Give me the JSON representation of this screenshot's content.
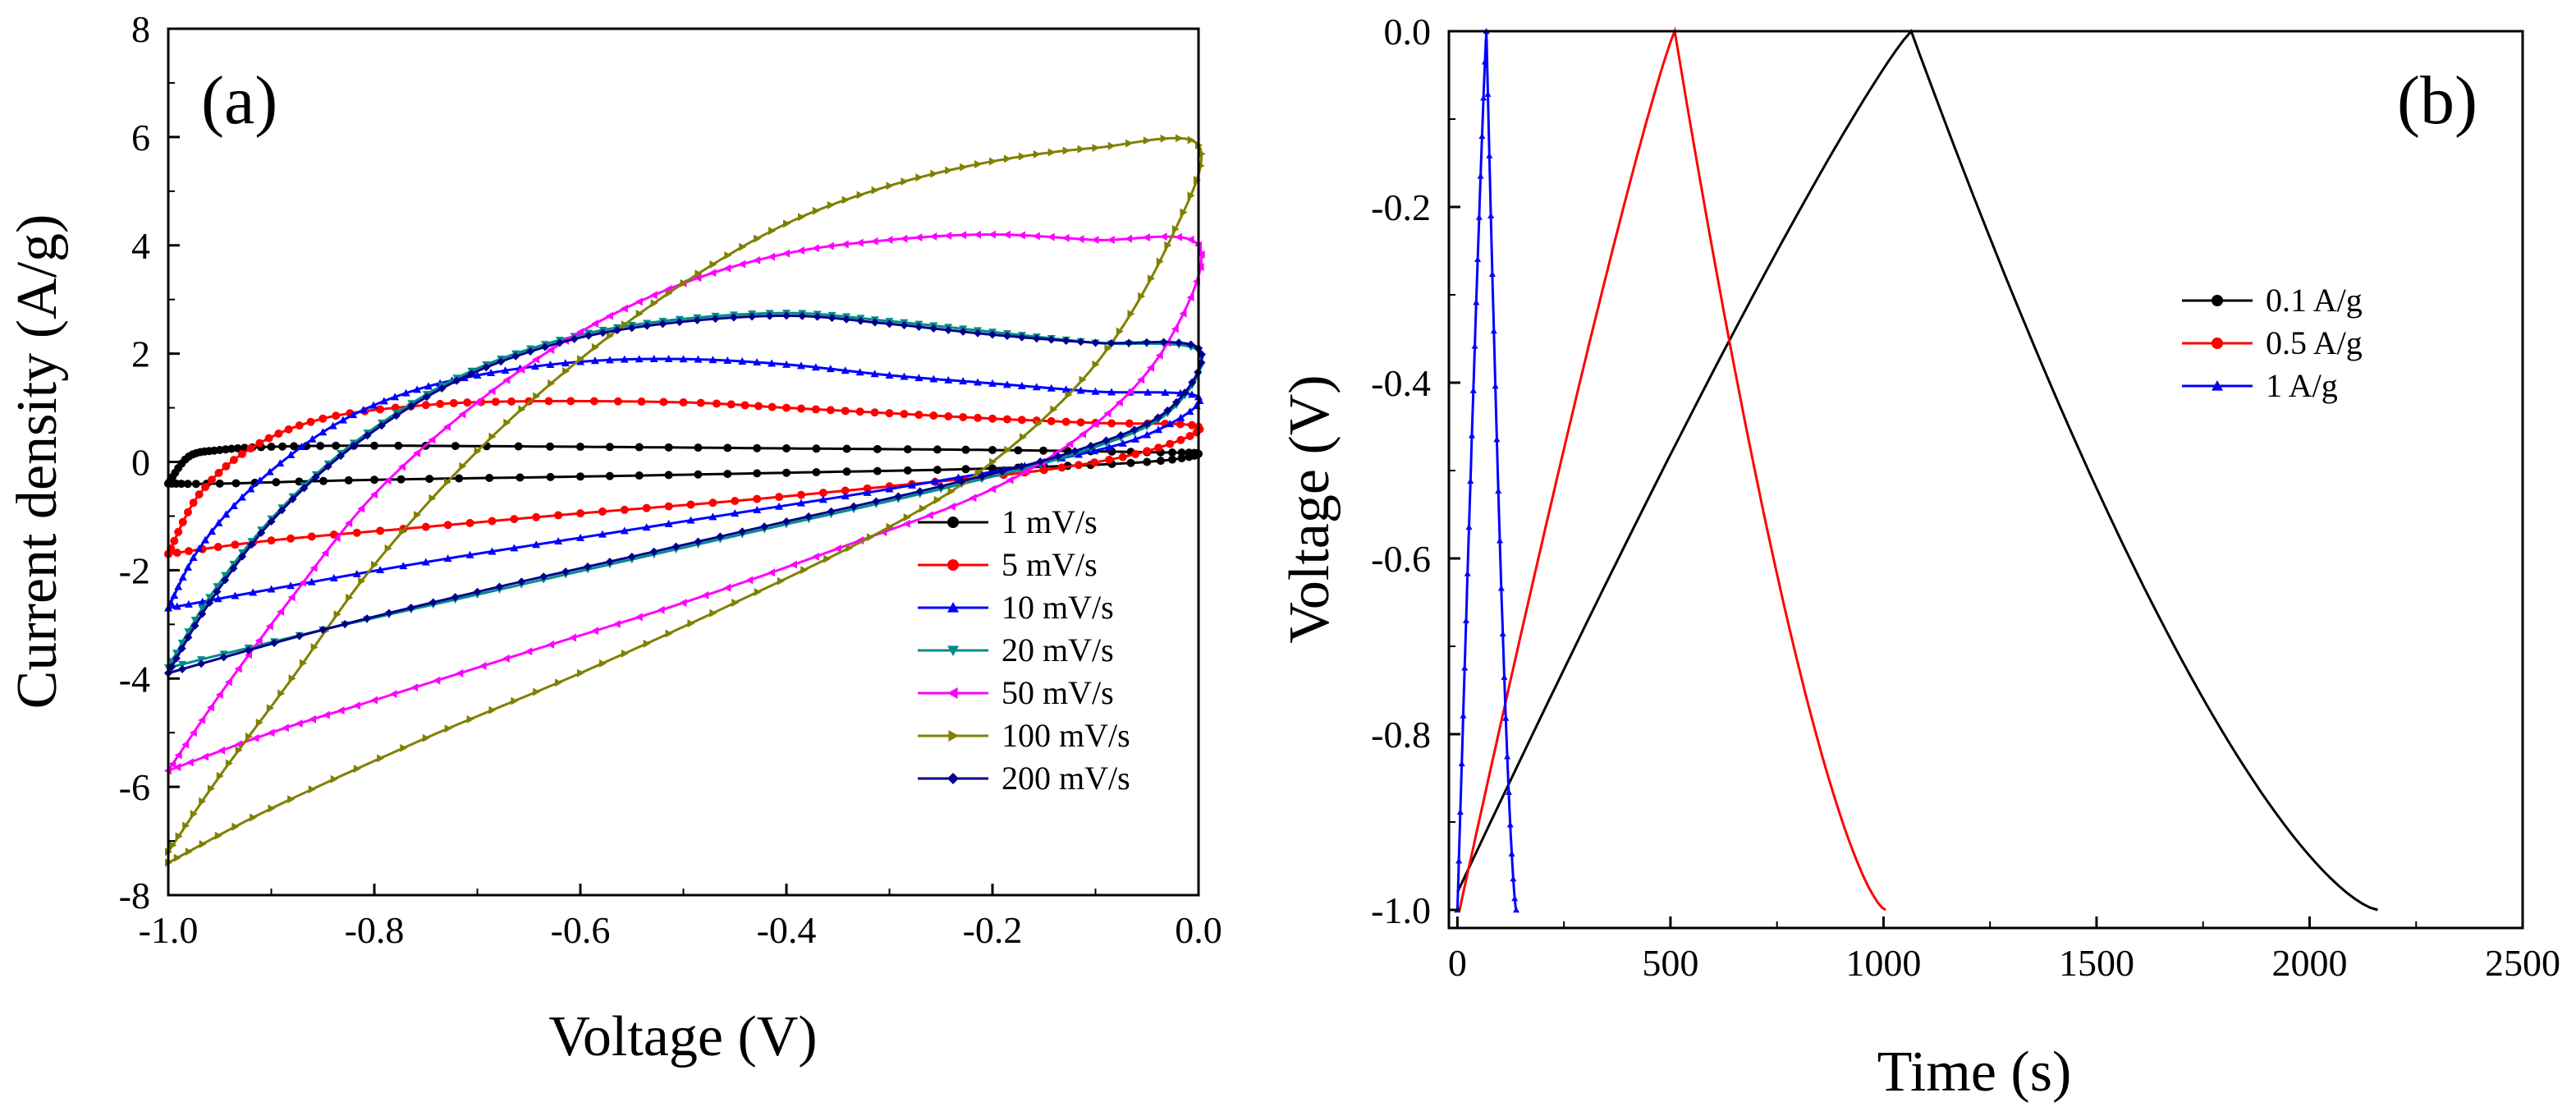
{
  "chart_data": [
    {
      "type": "line",
      "panel_label": "(a)",
      "xlabel": "Voltage (V)",
      "ylabel": "Current density (A/g)",
      "xlim": [
        -1.0,
        0.0
      ],
      "ylim": [
        -8,
        8
      ],
      "x_ticks": [
        -1.0,
        -0.8,
        -0.6,
        -0.4,
        -0.2,
        0.0
      ],
      "x_tick_labels": [
        "-1.0",
        "-0.8",
        "-0.6",
        "-0.4",
        "-0.2",
        "0.0"
      ],
      "y_ticks": [
        -8,
        -6,
        -4,
        -2,
        0,
        2,
        4,
        6,
        8
      ],
      "y_tick_labels": [
        "-8",
        "-6",
        "-4",
        "-2",
        "0",
        "2",
        "4",
        "6",
        "8"
      ],
      "legend_position": "lower-right",
      "series": [
        {
          "name": "1 mV/s",
          "color": "#000000",
          "marker": "circle",
          "upper": [
            [
              -1.0,
              -0.4
            ],
            [
              -0.98,
              0.1
            ],
            [
              -0.95,
              0.22
            ],
            [
              -0.9,
              0.28
            ],
            [
              -0.8,
              0.3
            ],
            [
              -0.6,
              0.28
            ],
            [
              -0.4,
              0.25
            ],
            [
              -0.2,
              0.22
            ],
            [
              -0.05,
              0.18
            ],
            [
              0.0,
              0.15
            ]
          ],
          "lower": [
            [
              0.0,
              0.15
            ],
            [
              -0.05,
              0.0
            ],
            [
              -0.2,
              -0.12
            ],
            [
              -0.4,
              -0.2
            ],
            [
              -0.6,
              -0.27
            ],
            [
              -0.8,
              -0.33
            ],
            [
              -0.95,
              -0.4
            ],
            [
              -1.0,
              -0.4
            ]
          ]
        },
        {
          "name": "5 mV/s",
          "color": "#ff0000",
          "marker": "circle",
          "upper": [
            [
              -1.0,
              -1.7
            ],
            [
              -0.97,
              -0.6
            ],
            [
              -0.92,
              0.25
            ],
            [
              -0.85,
              0.8
            ],
            [
              -0.75,
              1.05
            ],
            [
              -0.65,
              1.12
            ],
            [
              -0.5,
              1.1
            ],
            [
              -0.4,
              1.0
            ],
            [
              -0.3,
              0.9
            ],
            [
              -0.2,
              0.8
            ],
            [
              -0.1,
              0.72
            ],
            [
              0.0,
              0.65
            ]
          ],
          "lower": [
            [
              0.0,
              0.65
            ],
            [
              -0.05,
              0.2
            ],
            [
              -0.15,
              -0.15
            ],
            [
              -0.3,
              -0.45
            ],
            [
              -0.45,
              -0.72
            ],
            [
              -0.6,
              -0.95
            ],
            [
              -0.75,
              -1.2
            ],
            [
              -0.9,
              -1.45
            ],
            [
              -1.0,
              -1.7
            ]
          ]
        },
        {
          "name": "10 mV/s",
          "color": "#0000ff",
          "marker": "triangle-up",
          "upper": [
            [
              -1.0,
              -2.7
            ],
            [
              -0.97,
              -1.6
            ],
            [
              -0.92,
              -0.5
            ],
            [
              -0.85,
              0.55
            ],
            [
              -0.78,
              1.2
            ],
            [
              -0.7,
              1.6
            ],
            [
              -0.6,
              1.85
            ],
            [
              -0.5,
              1.9
            ],
            [
              -0.4,
              1.8
            ],
            [
              -0.3,
              1.6
            ],
            [
              -0.2,
              1.45
            ],
            [
              -0.1,
              1.3
            ],
            [
              0.0,
              1.2
            ]
          ],
          "lower": [
            [
              0.0,
              1.2
            ],
            [
              -0.05,
              0.5
            ],
            [
              -0.15,
              0.0
            ],
            [
              -0.3,
              -0.5
            ],
            [
              -0.45,
              -0.95
            ],
            [
              -0.6,
              -1.4
            ],
            [
              -0.75,
              -1.85
            ],
            [
              -0.9,
              -2.35
            ],
            [
              -1.0,
              -2.7
            ]
          ]
        },
        {
          "name": "20 mV/s",
          "color": "#008b8b",
          "marker": "triangle-down",
          "upper": [
            [
              -1.0,
              -3.8
            ],
            [
              -0.96,
              -2.5
            ],
            [
              -0.9,
              -1.05
            ],
            [
              -0.82,
              0.35
            ],
            [
              -0.72,
              1.55
            ],
            [
              -0.62,
              2.25
            ],
            [
              -0.52,
              2.6
            ],
            [
              -0.4,
              2.75
            ],
            [
              -0.3,
              2.6
            ],
            [
              -0.2,
              2.4
            ],
            [
              -0.1,
              2.2
            ],
            [
              0.0,
              2.05
            ]
          ],
          "lower": [
            [
              0.0,
              2.05
            ],
            [
              -0.03,
              0.9
            ],
            [
              -0.12,
              0.15
            ],
            [
              -0.25,
              -0.5
            ],
            [
              -0.4,
              -1.15
            ],
            [
              -0.55,
              -1.8
            ],
            [
              -0.7,
              -2.45
            ],
            [
              -0.85,
              -3.1
            ],
            [
              -1.0,
              -3.8
            ]
          ]
        },
        {
          "name": "50 mV/s",
          "color": "#ff00ff",
          "marker": "triangle-left",
          "upper": [
            [
              -1.0,
              -5.7
            ],
            [
              -0.95,
              -4.3
            ],
            [
              -0.88,
              -2.5
            ],
            [
              -0.8,
              -0.6
            ],
            [
              -0.7,
              1.1
            ],
            [
              -0.6,
              2.4
            ],
            [
              -0.5,
              3.3
            ],
            [
              -0.4,
              3.85
            ],
            [
              -0.3,
              4.1
            ],
            [
              -0.2,
              4.2
            ],
            [
              -0.1,
              4.1
            ],
            [
              0.0,
              4.0
            ]
          ],
          "lower": [
            [
              0.0,
              4.0
            ],
            [
              -0.03,
              2.2
            ],
            [
              -0.1,
              0.7
            ],
            [
              -0.2,
              -0.5
            ],
            [
              -0.35,
              -1.6
            ],
            [
              -0.5,
              -2.6
            ],
            [
              -0.65,
              -3.5
            ],
            [
              -0.8,
              -4.4
            ],
            [
              -0.9,
              -5.0
            ],
            [
              -1.0,
              -5.7
            ]
          ]
        },
        {
          "name": "100 mV/s",
          "color": "#808000",
          "marker": "triangle-right",
          "upper": [
            [
              -1.0,
              -7.2
            ],
            [
              -0.95,
              -5.8
            ],
            [
              -0.88,
              -4.0
            ],
            [
              -0.8,
              -1.9
            ],
            [
              -0.7,
              0.2
            ],
            [
              -0.6,
              1.9
            ],
            [
              -0.5,
              3.3
            ],
            [
              -0.4,
              4.4
            ],
            [
              -0.3,
              5.1
            ],
            [
              -0.2,
              5.55
            ],
            [
              -0.1,
              5.8
            ],
            [
              0.0,
              5.85
            ]
          ],
          "lower": [
            [
              0.0,
              5.85
            ],
            [
              -0.03,
              4.0
            ],
            [
              -0.1,
              1.8
            ],
            [
              -0.2,
              0.0
            ],
            [
              -0.3,
              -1.2
            ],
            [
              -0.45,
              -2.6
            ],
            [
              -0.6,
              -3.9
            ],
            [
              -0.75,
              -5.1
            ],
            [
              -0.9,
              -6.4
            ],
            [
              -1.0,
              -7.4
            ]
          ]
        },
        {
          "name": "200 mV/s",
          "color": "#00008b",
          "marker": "diamond",
          "upper": [
            [
              -1.0,
              -3.9
            ],
            [
              -0.96,
              -2.6
            ],
            [
              -0.9,
              -1.1
            ],
            [
              -0.82,
              0.3
            ],
            [
              -0.72,
              1.5
            ],
            [
              -0.62,
              2.2
            ],
            [
              -0.52,
              2.55
            ],
            [
              -0.4,
              2.7
            ],
            [
              -0.3,
              2.55
            ],
            [
              -0.2,
              2.35
            ],
            [
              -0.1,
              2.2
            ],
            [
              0.0,
              2.1
            ]
          ],
          "lower": [
            [
              0.0,
              2.1
            ],
            [
              -0.03,
              0.95
            ],
            [
              -0.12,
              0.2
            ],
            [
              -0.25,
              -0.45
            ],
            [
              -0.4,
              -1.1
            ],
            [
              -0.55,
              -1.75
            ],
            [
              -0.7,
              -2.4
            ],
            [
              -0.85,
              -3.1
            ],
            [
              -1.0,
              -3.9
            ]
          ]
        }
      ]
    },
    {
      "type": "line",
      "panel_label": "(b)",
      "xlabel": "Time (s)",
      "ylabel": "Voltage (V)",
      "xlim": [
        -20,
        2500
      ],
      "ylim": [
        -1.05,
        0.0
      ],
      "x_ticks": [
        0,
        500,
        1000,
        1500,
        2000,
        2500
      ],
      "x_tick_labels": [
        "0",
        "500",
        "1000",
        "1500",
        "2000",
        "2500"
      ],
      "y_ticks": [
        0.0,
        -0.2,
        -0.4,
        -0.6,
        -0.8,
        -1.0
      ],
      "y_tick_labels": [
        "0.0",
        "-0.2",
        "-0.4",
        "-0.6",
        "-0.8",
        "-1.0"
      ],
      "legend_position": "top-right",
      "series": [
        {
          "name": "0.1 A/g",
          "color": "#000000",
          "marker": "circle",
          "charge": {
            "t0": 0,
            "t1": 1065,
            "v0": -0.98,
            "v1": 0.0
          },
          "discharge": {
            "t0": 1065,
            "t1": 2160,
            "v0": 0.0,
            "v1": -1.0
          }
        },
        {
          "name": "0.5 A/g",
          "color": "#ff0000",
          "marker": "circle",
          "charge": {
            "t0": 5,
            "t1": 510,
            "v0": -1.0,
            "v1": 0.0
          },
          "discharge": {
            "t0": 510,
            "t1": 1005,
            "v0": 0.0,
            "v1": -1.0
          }
        },
        {
          "name": "1 A/g",
          "color": "#0000ff",
          "marker": "triangle-up",
          "charge": {
            "t0": 0,
            "t1": 68,
            "v0": -1.0,
            "v1": 0.0
          },
          "discharge": {
            "t0": 68,
            "t1": 138,
            "v0": 0.0,
            "v1": -1.0
          }
        }
      ]
    }
  ]
}
